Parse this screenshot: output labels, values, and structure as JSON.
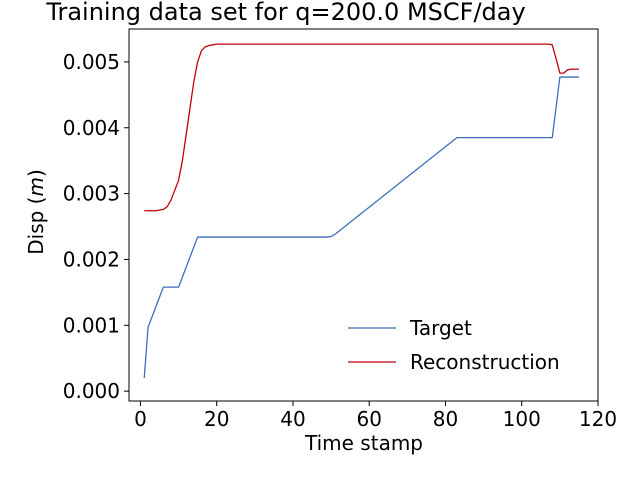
{
  "chart_data": {
    "type": "line",
    "title": "Training data set for q=200.0 MSCF/day",
    "xlabel": "Time stamp",
    "ylabel_prefix": "Disp (",
    "ylabel_unit": "m",
    "ylabel_suffix": ")",
    "xlim": [
      -3,
      120
    ],
    "ylim": [
      -0.00015,
      0.0055
    ],
    "xticks": [
      0,
      20,
      40,
      60,
      80,
      100,
      120
    ],
    "xtick_labels": [
      "0",
      "20",
      "40",
      "60",
      "80",
      "100",
      "120"
    ],
    "yticks": [
      0.0,
      0.001,
      0.002,
      0.003,
      0.004,
      0.005
    ],
    "ytick_labels": [
      "0.000",
      "0.001",
      "0.002",
      "0.003",
      "0.004",
      "0.005"
    ],
    "grid": false,
    "legend_position": "lower-right",
    "series": [
      {
        "name": "Target",
        "color": "#3a6fbf",
        "x": [
          1,
          2,
          6,
          10,
          15,
          49,
          50,
          51,
          83,
          108,
          110,
          115
        ],
        "y": [
          0.0002,
          0.00097,
          0.00158,
          0.00158,
          0.00234,
          0.00234,
          0.00235,
          0.00238,
          0.00385,
          0.00385,
          0.00477,
          0.00477
        ]
      },
      {
        "name": "Reconstruction",
        "color": "#c0000c",
        "x": [
          1,
          4,
          6,
          7,
          8,
          9,
          10,
          11,
          12,
          13,
          14,
          15,
          16,
          17,
          18,
          19,
          20,
          22,
          25,
          107,
          108,
          109,
          110,
          111,
          112,
          113,
          115
        ],
        "y": [
          0.00274,
          0.00274,
          0.00276,
          0.0028,
          0.0029,
          0.00305,
          0.0032,
          0.0035,
          0.0039,
          0.0043,
          0.0047,
          0.005,
          0.00517,
          0.00523,
          0.00525,
          0.00526,
          0.00527,
          0.00527,
          0.00527,
          0.00527,
          0.00526,
          0.00505,
          0.00483,
          0.00483,
          0.00488,
          0.00489,
          0.00489
        ]
      }
    ]
  }
}
